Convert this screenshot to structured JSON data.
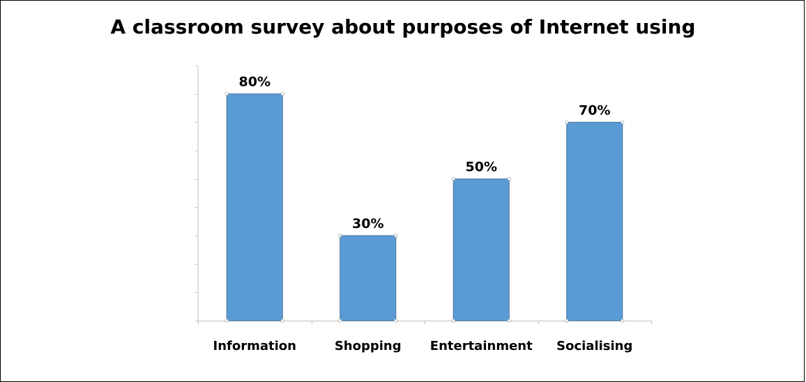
{
  "chart_data": {
    "type": "bar",
    "title": "A classroom survey about purposes of Internet using",
    "categories": [
      "Information",
      "Shopping",
      "Entertainment",
      "Socialising"
    ],
    "values": [
      80,
      30,
      50,
      70
    ],
    "data_labels": [
      "80%",
      "30%",
      "50%",
      "70%"
    ],
    "xlabel": "",
    "ylabel": "",
    "ylim": [
      0,
      90
    ],
    "y_tick_step": 10,
    "y_tick_labels_shown": false,
    "grid": false,
    "legend": "none",
    "colors": {
      "bar_fill": "#5b9bd5",
      "bar_stroke": "#41719c",
      "axis": "#bfbfbf",
      "marker": "#a6a6a6"
    }
  }
}
